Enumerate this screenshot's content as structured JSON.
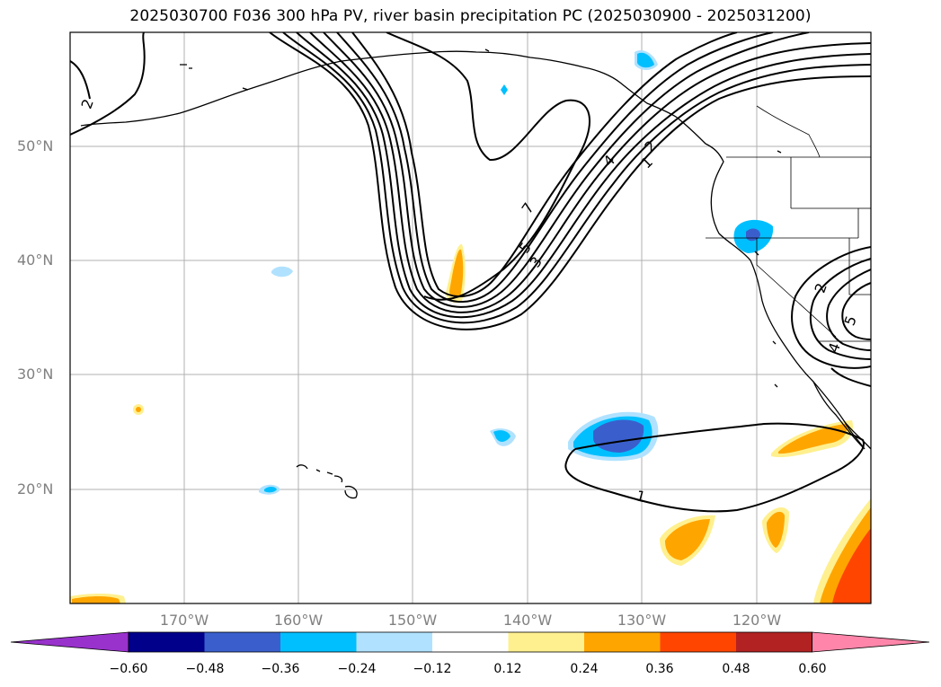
{
  "title": "2025030700 F036 300 hPa PV, river basin precipitation PC (2025030900 - 2025031200)",
  "lat_labels": [
    "50°N",
    "40°N",
    "30°N",
    "20°N"
  ],
  "lon_labels": [
    "170°W",
    "160°W",
    "150°W",
    "140°W",
    "130°W",
    "120°W"
  ],
  "contour_labels": [
    "2",
    "7",
    "5",
    "3",
    "4",
    "2",
    "1",
    "1",
    "2",
    "5",
    "4"
  ],
  "colorbar": {
    "ticks": [
      "−0.60",
      "−0.48",
      "−0.36",
      "−0.24",
      "−0.12",
      "0.12",
      "0.24",
      "0.36",
      "0.48",
      "0.60"
    ],
    "colors": [
      "#9932cc",
      "#00008b",
      "#3a5fcd",
      "#00bfff",
      "#b0e2ff",
      "#ffffff",
      "#fff08f",
      "#ffa500",
      "#ff4500",
      "#b22222",
      "#ff86aa"
    ]
  }
}
